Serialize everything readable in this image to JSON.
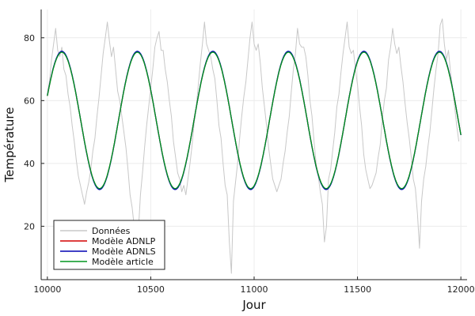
{
  "chart_data": {
    "type": "line",
    "xlabel": "Jour",
    "ylabel": "Température",
    "xlim": [
      9970,
      12030
    ],
    "ylim": [
      3,
      89
    ],
    "xticks": [
      10000,
      10500,
      11000,
      11500,
      12000
    ],
    "yticks": [
      20,
      40,
      60,
      80
    ],
    "grid": true,
    "legend_position": "bottom-left",
    "colors": {
      "data": "#c8c8c8",
      "adnlp": "#d40000",
      "adnls": "#0000b4",
      "article": "#00961e",
      "grid": "#ececec",
      "axis": "#222222"
    },
    "series": [
      {
        "name": "Données",
        "color": "#c8c8c8",
        "x_start": 10000,
        "x_end": 12000,
        "x_step": 10,
        "values": [
          62,
          66,
          73,
          78,
          83,
          76,
          74,
          77,
          70,
          68,
          62,
          58,
          52,
          47,
          41,
          36,
          33,
          30,
          27,
          31,
          34,
          38,
          44,
          48,
          55,
          61,
          68,
          75,
          80,
          85,
          79,
          74,
          77,
          70,
          63,
          60,
          55,
          50,
          45,
          38,
          30,
          26,
          20,
          12,
          18,
          30,
          37,
          45,
          52,
          58,
          64,
          70,
          77,
          80,
          82,
          76,
          76,
          70,
          66,
          60,
          55,
          47,
          42,
          37,
          35,
          31,
          33,
          30,
          35,
          40,
          46,
          53,
          58,
          65,
          72,
          78,
          85,
          78,
          76,
          74,
          70,
          67,
          60,
          52,
          48,
          40,
          33,
          30,
          15,
          5,
          28,
          34,
          40,
          48,
          55,
          61,
          66,
          73,
          80,
          85,
          78,
          76,
          78,
          72,
          64,
          58,
          52,
          45,
          40,
          35,
          33,
          31,
          33,
          35,
          40,
          44,
          50,
          55,
          63,
          70,
          75,
          83,
          78,
          77,
          77,
          74,
          68,
          60,
          55,
          47,
          40,
          36,
          31,
          27,
          15,
          20,
          35,
          38,
          44,
          50,
          58,
          62,
          69,
          75,
          80,
          85,
          77,
          75,
          76,
          70,
          65,
          58,
          52,
          43,
          38,
          35,
          32,
          33,
          35,
          37,
          42,
          46,
          54,
          60,
          64,
          73,
          77,
          83,
          78,
          75,
          77,
          71,
          66,
          59,
          53,
          48,
          42,
          35,
          32,
          24,
          13,
          28,
          35,
          39,
          45,
          50,
          57,
          64,
          70,
          75,
          84,
          86,
          78,
          73,
          76,
          69,
          64,
          58,
          52,
          47
        ]
      },
      {
        "name": "Modèle ADNLP",
        "color": "#d40000",
        "mean": 53.7,
        "amplitude": 21.8,
        "period": 365.25,
        "peak_day": 10070
      },
      {
        "name": "Modèle ADNLS",
        "color": "#0000b4",
        "mean": 53.7,
        "amplitude": 22.0,
        "period": 365.25,
        "peak_day": 10070
      },
      {
        "name": "Modèle article",
        "color": "#00961e",
        "mean": 53.7,
        "amplitude": 21.7,
        "period": 365.25,
        "peak_day": 10070
      }
    ]
  }
}
